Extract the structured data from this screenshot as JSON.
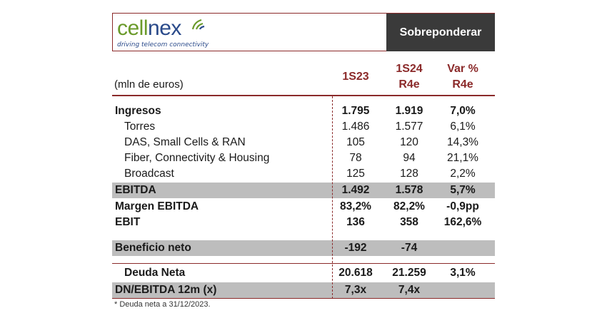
{
  "logo": {
    "part1": "cell",
    "part2": "nex",
    "tagline": "driving telecom connectivity"
  },
  "rating": "Sobreponderar",
  "units_label": "(mln de euros)",
  "columns": {
    "c1": {
      "line1": "1S23",
      "line2": ""
    },
    "c2": {
      "line1": "1S24",
      "line2": "R4e"
    },
    "c3": {
      "line1": "Var %",
      "line2": "R4e"
    }
  },
  "rows": [
    {
      "label": "Ingresos",
      "c1": "1.795",
      "c2": "1.919",
      "c3": "7,0%"
    },
    {
      "label": "Torres",
      "c1": "1.486",
      "c2": "1.577",
      "c3": "6,1%"
    },
    {
      "label": "DAS, Small Cells & RAN",
      "c1": "105",
      "c2": "120",
      "c3": "14,3%"
    },
    {
      "label": "Fiber, Connectivity & Housing",
      "c1": "78",
      "c2": "94",
      "c3": "21,1%"
    },
    {
      "label": "Broadcast",
      "c1": "125",
      "c2": "128",
      "c3": "2,2%"
    },
    {
      "label": "EBITDA",
      "c1": "1.492",
      "c2": "1.578",
      "c3": "5,7%"
    },
    {
      "label": "Margen EBITDA",
      "c1": "83,2%",
      "c2": "82,2%",
      "c3": "-0,9pp"
    },
    {
      "label": "EBIT",
      "c1": "136",
      "c2": "358",
      "c3": "162,6%"
    },
    {
      "label": "Beneficio neto",
      "c1": "-192",
      "c2": "-74",
      "c3": ""
    },
    {
      "label": "Deuda Neta",
      "c1": "20.618",
      "c2": "21.259",
      "c3": "3,1%"
    },
    {
      "label": "DN/EBITDA 12m (x)",
      "c1": "7,3x",
      "c2": "7,4x",
      "c3": ""
    }
  ],
  "footnote": "* Deuda neta a 31/12/2023.",
  "colors": {
    "accent": "#8b2a2a",
    "shade": "#bdbdbd",
    "rating_bg": "#3a3a3a"
  }
}
